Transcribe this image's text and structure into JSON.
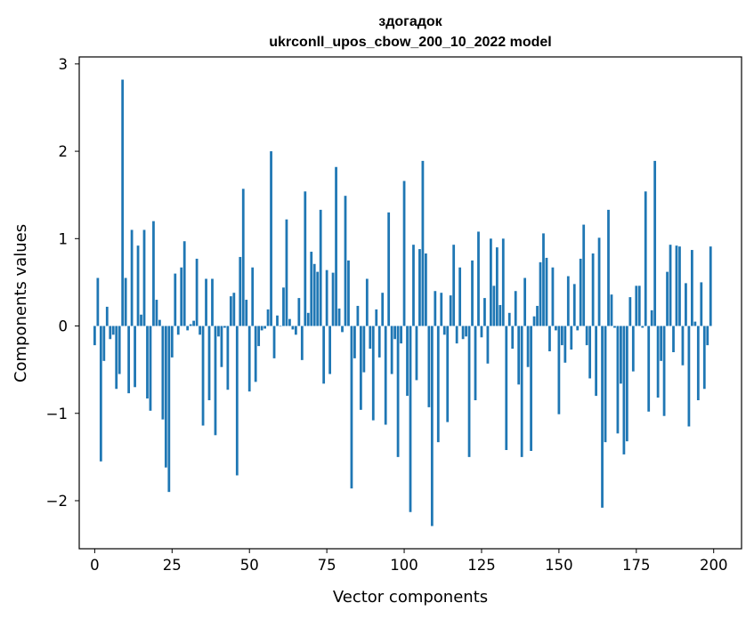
{
  "chart_data": {
    "type": "bar",
    "title": "здогадок",
    "subtitle": "ukrconll_upos_cbow_200_10_2022 model",
    "xlabel": "Vector components",
    "ylabel": "Components values",
    "xlim": [
      -5,
      209
    ],
    "ylim": [
      -2.55,
      3.08
    ],
    "xticks": [
      0,
      25,
      50,
      75,
      100,
      125,
      150,
      175,
      200
    ],
    "yticks": [
      -2,
      -1,
      0,
      1,
      2,
      3
    ],
    "bar_color": "#1f77b4",
    "grid": false,
    "legend": "none",
    "x": [
      0,
      1,
      2,
      3,
      4,
      5,
      6,
      7,
      8,
      9,
      10,
      11,
      12,
      13,
      14,
      15,
      16,
      17,
      18,
      19,
      20,
      21,
      22,
      23,
      24,
      25,
      26,
      27,
      28,
      29,
      30,
      31,
      32,
      33,
      34,
      35,
      36,
      37,
      38,
      39,
      40,
      41,
      42,
      43,
      44,
      45,
      46,
      47,
      48,
      49,
      50,
      51,
      52,
      53,
      54,
      55,
      56,
      57,
      58,
      59,
      60,
      61,
      62,
      63,
      64,
      65,
      66,
      67,
      68,
      69,
      70,
      71,
      72,
      73,
      74,
      75,
      76,
      77,
      78,
      79,
      80,
      81,
      82,
      83,
      84,
      85,
      86,
      87,
      88,
      89,
      90,
      91,
      92,
      93,
      94,
      95,
      96,
      97,
      98,
      99,
      100,
      101,
      102,
      103,
      104,
      105,
      106,
      107,
      108,
      109,
      110,
      111,
      112,
      113,
      114,
      115,
      116,
      117,
      118,
      119,
      120,
      121,
      122,
      123,
      124,
      125,
      126,
      127,
      128,
      129,
      130,
      131,
      132,
      133,
      134,
      135,
      136,
      137,
      138,
      139,
      140,
      141,
      142,
      143,
      144,
      145,
      146,
      147,
      148,
      149,
      150,
      151,
      152,
      153,
      154,
      155,
      156,
      157,
      158,
      159,
      160,
      161,
      162,
      163,
      164,
      165,
      166,
      167,
      168,
      169,
      170,
      171,
      172,
      173,
      174,
      175,
      176,
      177,
      178,
      179,
      180,
      181,
      182,
      183,
      184,
      185,
      186,
      187,
      188,
      189,
      190,
      191,
      192,
      193,
      194,
      195,
      196,
      197,
      198,
      199
    ],
    "values": [
      -0.22,
      0.55,
      -1.55,
      -0.4,
      0.22,
      -0.15,
      -0.1,
      -0.72,
      -0.55,
      2.82,
      0.55,
      -0.77,
      1.1,
      -0.7,
      0.92,
      0.13,
      1.1,
      -0.83,
      -0.97,
      1.2,
      0.3,
      0.07,
      -1.07,
      -1.62,
      -1.9,
      -0.36,
      0.6,
      -0.1,
      0.67,
      0.97,
      -0.05,
      0.02,
      0.06,
      0.77,
      -0.1,
      -1.14,
      0.54,
      -0.85,
      0.54,
      -1.25,
      -0.12,
      -0.47,
      -0.02,
      -0.73,
      0.34,
      0.38,
      -1.71,
      0.79,
      1.57,
      0.3,
      -0.75,
      0.67,
      -0.64,
      -0.23,
      -0.05,
      -0.03,
      0.19,
      2.0,
      -0.37,
      0.12,
      0.0,
      0.44,
      1.22,
      0.08,
      -0.04,
      -0.1,
      0.32,
      -0.39,
      1.54,
      0.15,
      0.85,
      0.71,
      0.62,
      1.33,
      -0.66,
      0.64,
      -0.55,
      0.61,
      1.82,
      0.2,
      -0.07,
      1.49,
      0.75,
      -1.86,
      -0.37,
      0.23,
      -0.96,
      -0.53,
      0.54,
      -0.26,
      -1.08,
      0.19,
      -0.36,
      0.38,
      -1.13,
      1.3,
      -0.55,
      -0.15,
      -1.5,
      -0.2,
      1.66,
      -0.8,
      -2.13,
      0.93,
      -0.62,
      0.88,
      1.89,
      0.83,
      -0.93,
      -2.29,
      0.4,
      -1.33,
      0.38,
      -0.1,
      -1.1,
      0.35,
      0.93,
      -0.2,
      0.67,
      -0.15,
      -0.12,
      -1.5,
      0.75,
      -0.85,
      1.08,
      -0.13,
      0.32,
      -0.43,
      1.0,
      0.46,
      0.9,
      0.24,
      1.0,
      -1.42,
      0.15,
      -0.26,
      0.4,
      -0.67,
      -1.5,
      0.55,
      -0.47,
      -1.43,
      0.11,
      0.23,
      0.73,
      1.06,
      0.78,
      -0.29,
      0.67,
      -0.05,
      -1.01,
      -0.22,
      -0.42,
      0.57,
      -0.27,
      0.48,
      -0.05,
      0.77,
      1.16,
      -0.22,
      -0.6,
      0.83,
      -0.8,
      1.01,
      -2.08,
      -1.33,
      1.33,
      0.36,
      -0.02,
      -1.23,
      -0.66,
      -1.47,
      -1.32,
      0.33,
      -0.52,
      0.46,
      0.46,
      -0.02,
      1.54,
      -0.98,
      0.18,
      1.89,
      -0.82,
      -0.4,
      -1.03,
      0.62,
      0.93,
      -0.3,
      0.92,
      0.91,
      -0.45,
      0.49,
      -1.15,
      0.87,
      0.05,
      -0.85,
      0.5,
      -0.72,
      -0.22,
      0.91
    ]
  }
}
